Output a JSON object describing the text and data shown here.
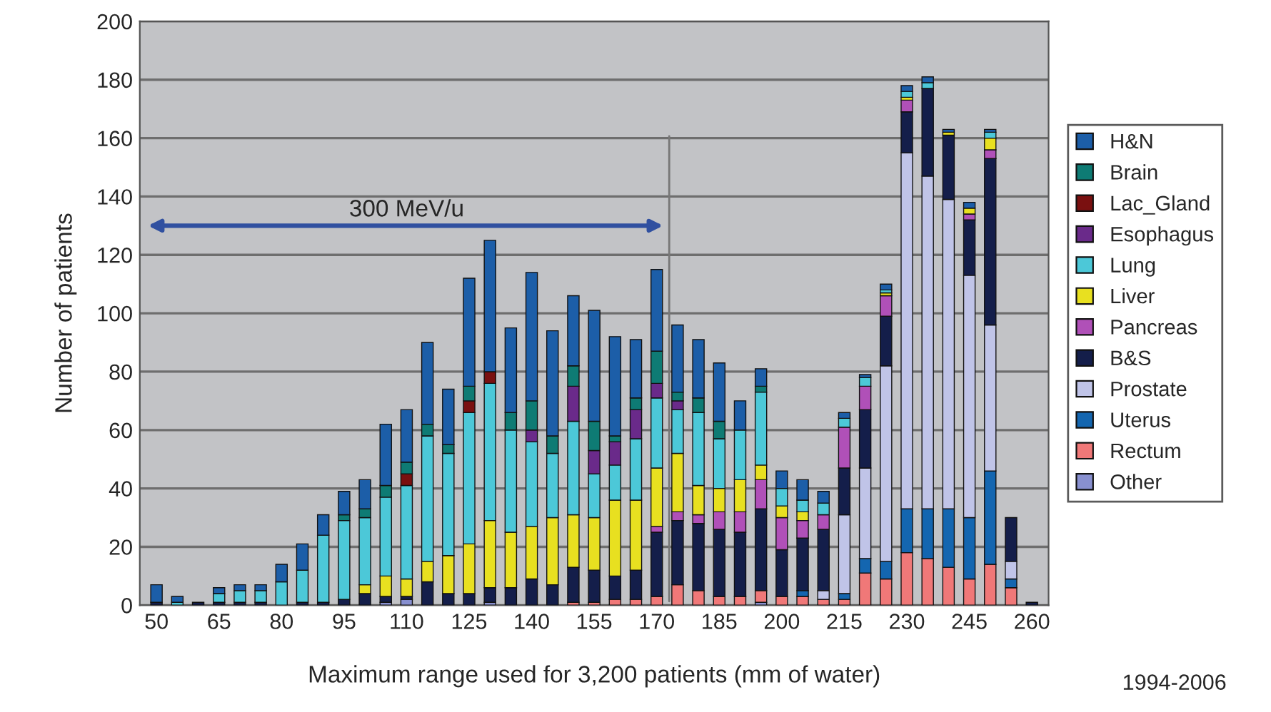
{
  "chart_data": {
    "type": "bar",
    "stacked": true,
    "xlabel": "Maximum range used for 3,200 patients (mm of water)",
    "ylabel": "Number of patients",
    "annotations": [
      "300 MeV/u",
      "1994-2006"
    ],
    "categories": [
      "50",
      null,
      null,
      "65",
      null,
      null,
      "80",
      null,
      null,
      "95",
      null,
      null,
      "110",
      null,
      null,
      "125",
      null,
      null,
      "140",
      null,
      null,
      "155",
      null,
      null,
      "170",
      null,
      null,
      "185",
      null,
      null,
      "200",
      null,
      null,
      "215",
      null,
      null,
      "230",
      null,
      null,
      "245",
      null,
      null,
      "260"
    ],
    "ylim": [
      0,
      200
    ],
    "yticks": [
      0,
      20,
      40,
      60,
      80,
      100,
      120,
      140,
      160,
      180,
      200
    ],
    "grid": "y",
    "legend": "right",
    "series": [
      {
        "name": "Other",
        "color": "#8890d0",
        "values": [
          0,
          0,
          0,
          0,
          0,
          0,
          0,
          0,
          0,
          0,
          0,
          1,
          2,
          0,
          0,
          0,
          1,
          0,
          0,
          0,
          0,
          0,
          0,
          0,
          0,
          0,
          0,
          0,
          0,
          1,
          0,
          0,
          0,
          0,
          0,
          0,
          0,
          0,
          0,
          0,
          0,
          0,
          0
        ]
      },
      {
        "name": "Rectum",
        "color": "#f07878",
        "values": [
          0,
          0,
          0,
          0,
          0,
          0,
          0,
          0,
          0,
          0,
          0,
          0,
          0,
          0,
          0,
          0,
          0,
          0,
          0,
          0,
          1,
          1,
          2,
          2,
          3,
          7,
          5,
          3,
          3,
          4,
          3,
          3,
          2,
          2,
          11,
          9,
          18,
          16,
          13,
          9,
          14,
          6,
          0
        ]
      },
      {
        "name": "Uterus",
        "color": "#1466b0",
        "values": [
          0,
          0,
          0,
          0,
          0,
          0,
          0,
          0,
          0,
          0,
          0,
          0,
          0,
          0,
          0,
          0,
          0,
          0,
          0,
          0,
          0,
          0,
          0,
          0,
          0,
          0,
          0,
          0,
          0,
          0,
          0,
          2,
          0,
          2,
          5,
          6,
          15,
          17,
          20,
          21,
          32,
          3,
          0
        ]
      },
      {
        "name": "Prostate",
        "color": "#c0c4e8",
        "values": [
          0,
          0,
          0,
          0,
          0,
          0,
          0,
          0,
          0,
          0,
          0,
          0,
          0,
          0,
          0,
          0,
          0,
          0,
          0,
          0,
          0,
          0,
          0,
          0,
          0,
          0,
          0,
          0,
          0,
          0,
          0,
          0,
          3,
          27,
          31,
          67,
          122,
          114,
          106,
          83,
          50,
          6,
          0
        ]
      },
      {
        "name": "B&S",
        "color": "#141e4a",
        "values": [
          1,
          0,
          1,
          1,
          1,
          1,
          0,
          1,
          1,
          2,
          4,
          2,
          1,
          8,
          4,
          4,
          5,
          6,
          9,
          7,
          12,
          11,
          8,
          10,
          22,
          22,
          23,
          23,
          22,
          28,
          16,
          18,
          21,
          16,
          20,
          17,
          14,
          30,
          22,
          19,
          57,
          15,
          1
        ]
      },
      {
        "name": "Pancreas",
        "color": "#b050b8",
        "values": [
          0,
          0,
          0,
          0,
          0,
          0,
          0,
          0,
          0,
          0,
          0,
          0,
          0,
          0,
          0,
          0,
          0,
          0,
          0,
          0,
          0,
          0,
          0,
          0,
          2,
          3,
          3,
          6,
          7,
          10,
          11,
          6,
          5,
          14,
          8,
          7,
          4,
          0,
          0,
          2,
          3,
          0,
          0
        ]
      },
      {
        "name": "Liver",
        "color": "#e8e020",
        "values": [
          0,
          0,
          0,
          0,
          0,
          0,
          0,
          0,
          0,
          0,
          3,
          7,
          6,
          7,
          13,
          17,
          23,
          19,
          18,
          23,
          18,
          18,
          26,
          24,
          20,
          20,
          10,
          8,
          11,
          5,
          4,
          3,
          0,
          0,
          0,
          1,
          1,
          0,
          1,
          2,
          4,
          0,
          0
        ]
      },
      {
        "name": "Lung",
        "color": "#4cc8d8",
        "values": [
          0,
          1,
          0,
          3,
          4,
          4,
          8,
          11,
          23,
          27,
          23,
          27,
          32,
          43,
          35,
          45,
          47,
          35,
          29,
          22,
          32,
          15,
          12,
          21,
          24,
          15,
          25,
          17,
          17,
          25,
          6,
          4,
          4,
          3,
          3,
          1,
          2,
          2,
          0,
          0,
          2,
          0,
          0
        ]
      },
      {
        "name": "Esophagus",
        "color": "#6a2a8a",
        "values": [
          0,
          0,
          0,
          0,
          0,
          0,
          0,
          0,
          0,
          0,
          0,
          0,
          0,
          0,
          0,
          0,
          0,
          0,
          4,
          0,
          12,
          8,
          8,
          10,
          5,
          3,
          0,
          0,
          0,
          0,
          0,
          0,
          0,
          0,
          0,
          0,
          0,
          0,
          0,
          0,
          0,
          0,
          0
        ]
      },
      {
        "name": "Lac_Gland",
        "color": "#7a1010",
        "values": [
          0,
          0,
          0,
          0,
          0,
          0,
          0,
          0,
          0,
          0,
          0,
          0,
          4,
          0,
          0,
          4,
          4,
          0,
          0,
          0,
          0,
          0,
          0,
          0,
          0,
          0,
          0,
          0,
          0,
          0,
          0,
          0,
          0,
          0,
          0,
          0,
          0,
          0,
          0,
          0,
          0,
          0,
          0
        ]
      },
      {
        "name": "Brain",
        "color": "#0e7b74",
        "values": [
          0,
          0,
          0,
          0,
          0,
          0,
          0,
          0,
          0,
          2,
          3,
          4,
          4,
          4,
          3,
          5,
          0,
          6,
          10,
          6,
          7,
          10,
          2,
          4,
          11,
          3,
          5,
          6,
          0,
          2,
          0,
          0,
          0,
          0,
          0,
          0,
          0,
          0,
          0,
          0,
          0,
          0,
          0
        ]
      },
      {
        "name": "H&N",
        "color": "#1c5ea8",
        "values": [
          6,
          2,
          0,
          2,
          2,
          2,
          6,
          9,
          7,
          8,
          10,
          21,
          18,
          28,
          19,
          37,
          45,
          29,
          44,
          36,
          24,
          38,
          34,
          20,
          28,
          23,
          20,
          20,
          10,
          6,
          6,
          7,
          4,
          2,
          1,
          2,
          2,
          2,
          1,
          2,
          1,
          0,
          0
        ]
      }
    ]
  }
}
